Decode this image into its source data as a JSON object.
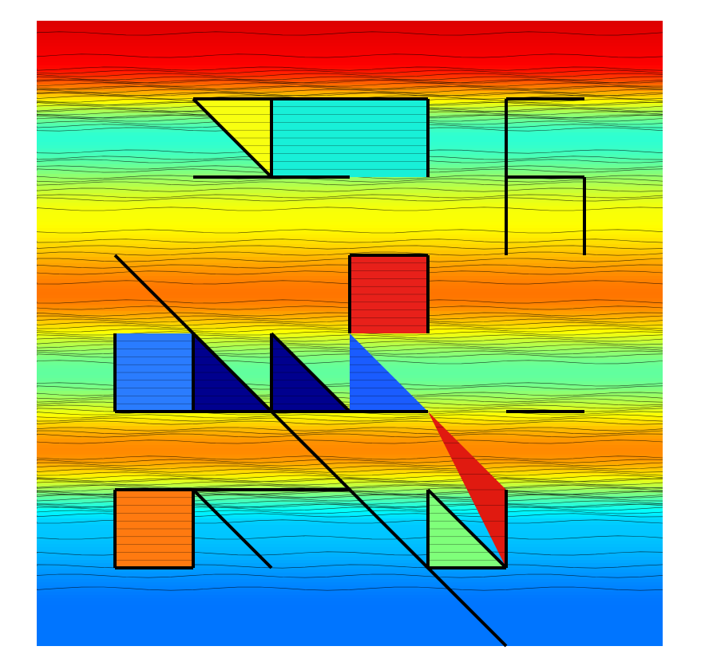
{
  "chart_data": {
    "type": "heatmap",
    "title": "",
    "xlabel": "",
    "ylabel": "",
    "axes_visible": false,
    "grid": false,
    "legend": "none",
    "colormap": "jet",
    "contour_lines": true,
    "colorbar_visible": false,
    "grid_units": 8,
    "value_range": [
      0,
      1
    ],
    "field_description_profile_rows": [
      0.5,
      1.5,
      2.5,
      3.5,
      4.5,
      5.5,
      6.5,
      7.5
    ],
    "field_description_profile_values": [
      0.88,
      0.42,
      0.62,
      0.76,
      0.47,
      0.74,
      0.32,
      0.24
    ],
    "walls": [
      {
        "x1": 2,
        "y1": 1,
        "x2": 5,
        "y2": 1
      },
      {
        "x1": 2,
        "y1": 1,
        "x2": 3,
        "y2": 2
      },
      {
        "x1": 3,
        "y1": 1,
        "x2": 3,
        "y2": 2
      },
      {
        "x1": 2,
        "y1": 2,
        "x2": 4,
        "y2": 2
      },
      {
        "x1": 5,
        "y1": 1,
        "x2": 5,
        "y2": 2
      },
      {
        "x1": 6,
        "y1": 1,
        "x2": 7,
        "y2": 1
      },
      {
        "x1": 6,
        "y1": 1,
        "x2": 6,
        "y2": 3
      },
      {
        "x1": 6,
        "y1": 2,
        "x2": 7,
        "y2": 2
      },
      {
        "x1": 7,
        "y1": 2,
        "x2": 7,
        "y2": 3
      },
      {
        "x1": 1,
        "y1": 3,
        "x2": 6,
        "y2": 8
      },
      {
        "x1": 4,
        "y1": 3,
        "x2": 5,
        "y2": 3
      },
      {
        "x1": 4,
        "y1": 3,
        "x2": 4,
        "y2": 4
      },
      {
        "x1": 5,
        "y1": 3,
        "x2": 5,
        "y2": 4
      },
      {
        "x1": 1,
        "y1": 4,
        "x2": 1,
        "y2": 5
      },
      {
        "x1": 2,
        "y1": 4,
        "x2": 2,
        "y2": 5
      },
      {
        "x1": 3,
        "y1": 4,
        "x2": 3,
        "y2": 5
      },
      {
        "x1": 1,
        "y1": 5,
        "x2": 5,
        "y2": 5
      },
      {
        "x1": 2,
        "y1": 4,
        "x2": 3,
        "y2": 5
      },
      {
        "x1": 3,
        "y1": 4,
        "x2": 4,
        "y2": 5
      },
      {
        "x1": 6,
        "y1": 5,
        "x2": 7,
        "y2": 5
      },
      {
        "x1": 1,
        "y1": 6,
        "x2": 4,
        "y2": 6
      },
      {
        "x1": 1,
        "y1": 6,
        "x2": 1,
        "y2": 7
      },
      {
        "x1": 2,
        "y1": 6,
        "x2": 2,
        "y2": 7
      },
      {
        "x1": 1,
        "y1": 7,
        "x2": 2,
        "y2": 7
      },
      {
        "x1": 2,
        "y1": 6,
        "x2": 3,
        "y2": 7
      },
      {
        "x1": 5,
        "y1": 6,
        "x2": 5,
        "y2": 7
      },
      {
        "x1": 5,
        "y1": 6,
        "x2": 6,
        "y2": 7
      },
      {
        "x1": 6,
        "y1": 6,
        "x2": 6,
        "y2": 7
      },
      {
        "x1": 5,
        "y1": 7,
        "x2": 6,
        "y2": 7
      }
    ],
    "filled_regions": [
      {
        "name": "region-yellow-triangle",
        "value": 0.68,
        "points": [
          [
            2,
            1
          ],
          [
            3,
            1
          ],
          [
            3,
            2
          ]
        ],
        "color": "#f8ff10"
      },
      {
        "name": "region-cyan-box",
        "value": 0.36,
        "points": [
          [
            3,
            1
          ],
          [
            5,
            1
          ],
          [
            5,
            2
          ],
          [
            3,
            2
          ]
        ],
        "color": "#18f0d8"
      },
      {
        "name": "region-red-box",
        "value": 0.9,
        "points": [
          [
            4,
            3
          ],
          [
            5,
            3
          ],
          [
            5,
            4
          ],
          [
            4,
            4
          ]
        ],
        "color": "#e8201a"
      },
      {
        "name": "region-blue-box",
        "value": 0.22,
        "points": [
          [
            1,
            4
          ],
          [
            2,
            4
          ],
          [
            2,
            5
          ],
          [
            1,
            5
          ]
        ],
        "color": "#2a7cff"
      },
      {
        "name": "region-navy-triangle-1",
        "value": 0.02,
        "points": [
          [
            2,
            4
          ],
          [
            3,
            5
          ],
          [
            2,
            5
          ]
        ],
        "color": "#00008e"
      },
      {
        "name": "region-navy-triangle-2",
        "value": 0.02,
        "points": [
          [
            3,
            4
          ],
          [
            4,
            5
          ],
          [
            3,
            5
          ]
        ],
        "color": "#00008e"
      },
      {
        "name": "region-blue-diagonal",
        "value": 0.18,
        "points": [
          [
            4,
            4
          ],
          [
            5,
            5
          ],
          [
            4,
            5
          ]
        ],
        "color": "#1a5cff"
      },
      {
        "name": "region-orange-box",
        "value": 0.8,
        "points": [
          [
            1,
            6
          ],
          [
            2,
            6
          ],
          [
            2,
            7
          ],
          [
            1,
            7
          ]
        ],
        "color": "#ff7a10"
      },
      {
        "name": "region-red-diagonal",
        "value": 0.85,
        "points": [
          [
            5,
            5
          ],
          [
            6,
            6
          ],
          [
            6,
            7
          ]
        ],
        "color": "#e01a10"
      },
      {
        "name": "region-green-triangle",
        "value": 0.55,
        "points": [
          [
            5,
            6
          ],
          [
            6,
            7
          ],
          [
            5,
            7
          ]
        ],
        "color": "#7fff7a"
      }
    ]
  }
}
